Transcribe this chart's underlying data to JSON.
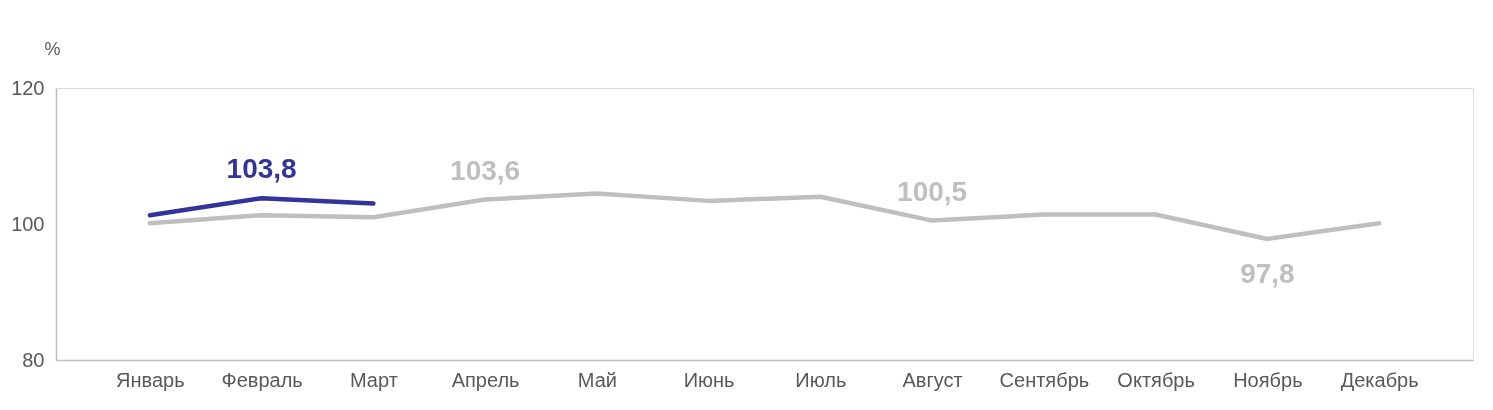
{
  "chart_data": {
    "type": "line",
    "ylabel": "%",
    "categories": [
      "Январь",
      "Февраль",
      "Март",
      "Апрель",
      "Май",
      "Июнь",
      "Июль",
      "Август",
      "Сентябрь",
      "Октябрь",
      "Ноябрь",
      "Декабрь"
    ],
    "ylim": [
      80,
      120
    ],
    "yticks": [
      80,
      100,
      120
    ],
    "grid": false,
    "legend": false,
    "marker": "none",
    "line_style": "solid",
    "series": [
      {
        "color": "#bfbfbf",
        "values": [
          100.1,
          101.3,
          101.0,
          103.6,
          104.5,
          103.4,
          104.0,
          100.5,
          101.4,
          101.4,
          97.8,
          100.1
        ],
        "value_labels": [
          null,
          null,
          null,
          "103,6",
          null,
          null,
          null,
          "100,5",
          null,
          null,
          "97,8",
          null
        ]
      },
      {
        "color": "#333399",
        "values": [
          101.3,
          103.8,
          103.0,
          null,
          null,
          null,
          null,
          null,
          null,
          null,
          null,
          null
        ],
        "value_labels": [
          null,
          "103,8",
          null,
          null,
          null,
          null,
          null,
          null,
          null,
          null,
          null,
          null
        ]
      }
    ]
  }
}
